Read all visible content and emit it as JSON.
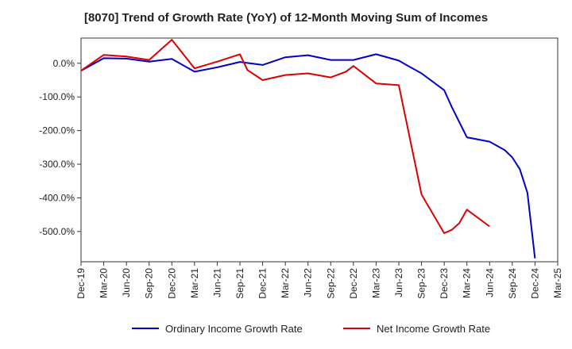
{
  "chart_data": {
    "type": "line",
    "title": "[8070]  Trend of Growth Rate (YoY) of 12-Month Moving Sum of Incomes",
    "xlabel": "",
    "ylabel": "",
    "x_ticks": [
      "Dec-19",
      "Mar-20",
      "Jun-20",
      "Sep-20",
      "Dec-20",
      "Mar-21",
      "Jun-21",
      "Sep-21",
      "Dec-21",
      "Mar-22",
      "Jun-22",
      "Sep-22",
      "Dec-22",
      "Mar-23",
      "Jun-23",
      "Sep-23",
      "Dec-23",
      "Mar-24",
      "Jun-24",
      "Sep-24",
      "Dec-24",
      "Mar-25"
    ],
    "y_ticks": [
      0,
      -100,
      -200,
      -300,
      -400,
      -500
    ],
    "y_tick_labels": [
      "0.0%",
      "-100.0%",
      "-200.0%",
      "-300.0%",
      "-400.0%",
      "-500.0%"
    ],
    "ylim": [
      -590,
      75
    ],
    "grid": true,
    "legend_position": "bottom",
    "series": [
      {
        "name": "Ordinary Income Growth Rate",
        "color": "#0000cc",
        "points": [
          [
            "Dec-19",
            -22
          ],
          [
            "Mar-20",
            15
          ],
          [
            "Jun-20",
            14
          ],
          [
            "Sep-20",
            5
          ],
          [
            "Dec-20",
            13
          ],
          [
            "Mar-21",
            -25
          ],
          [
            "Jun-21",
            -12
          ],
          [
            "Sep-21",
            4
          ],
          [
            "Dec-21",
            -5
          ],
          [
            "Mar-22",
            18
          ],
          [
            "Jun-22",
            24
          ],
          [
            "Sep-22",
            10
          ],
          [
            "Dec-22",
            10
          ],
          [
            "Mar-23",
            27
          ],
          [
            "Jun-23",
            8
          ],
          [
            "Jul-23",
            -5
          ],
          [
            "Sep-23",
            -30
          ],
          [
            "Dec-23",
            -80
          ],
          [
            "Jan-24",
            -130
          ],
          [
            "Mar-24",
            -220
          ],
          [
            "Jun-24",
            -233
          ],
          [
            "Aug-24",
            -258
          ],
          [
            "Sep-24",
            -280
          ],
          [
            "Oct-24",
            -315
          ],
          [
            "Nov-24",
            -385
          ],
          [
            "Dec-24",
            -580
          ]
        ]
      },
      {
        "name": "Net Income Growth Rate",
        "color": "#dd0000",
        "points": [
          [
            "Dec-19",
            -22
          ],
          [
            "Mar-20",
            25
          ],
          [
            "Jun-20",
            20
          ],
          [
            "Sep-20",
            10
          ],
          [
            "Dec-20",
            70
          ],
          [
            "Mar-21",
            -15
          ],
          [
            "Jun-21",
            5
          ],
          [
            "Sep-21",
            27
          ],
          [
            "Oct-21",
            -20
          ],
          [
            "Dec-21",
            -50
          ],
          [
            "Mar-22",
            -35
          ],
          [
            "Jun-22",
            -30
          ],
          [
            "Sep-22",
            -42
          ],
          [
            "Nov-22",
            -25
          ],
          [
            "Dec-22",
            -8
          ],
          [
            "Mar-23",
            -60
          ],
          [
            "Jun-23",
            -65
          ],
          [
            "Sep-23",
            -390
          ],
          [
            "Dec-23",
            -505
          ],
          [
            "Jan-24",
            -495
          ],
          [
            "Feb-24",
            -475
          ],
          [
            "Mar-24",
            -435
          ],
          [
            "Jun-24",
            -485
          ]
        ]
      }
    ]
  }
}
